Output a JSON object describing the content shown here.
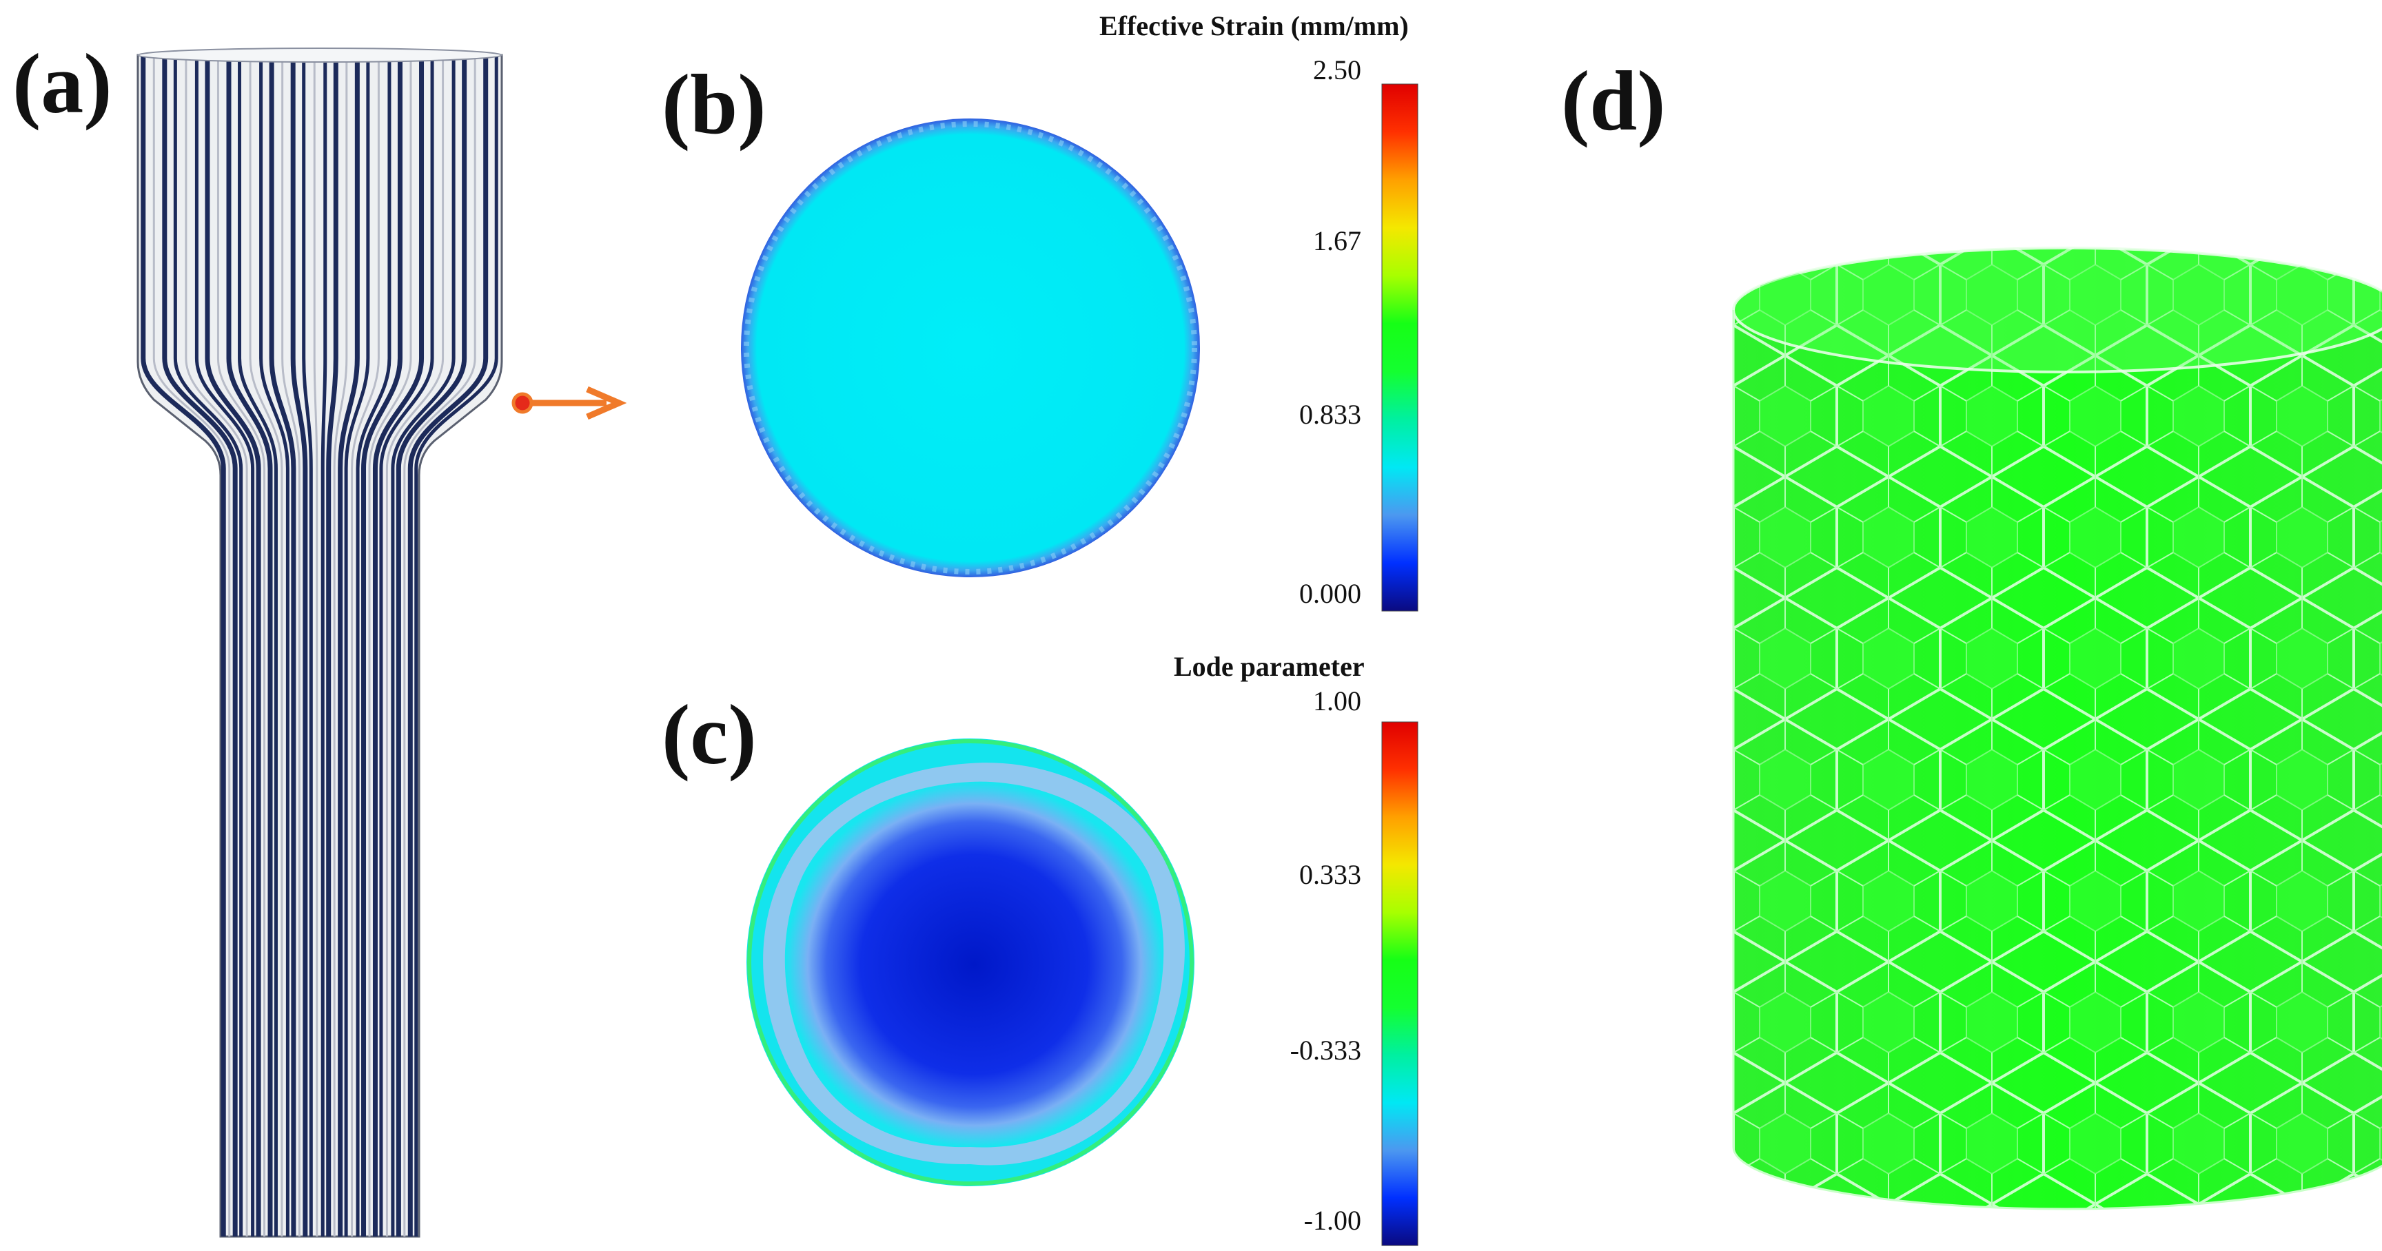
{
  "panels": {
    "a": {
      "label": "(a)"
    },
    "b": {
      "label": "(b)"
    },
    "c": {
      "label": "(c)"
    },
    "d": {
      "label": "(d)"
    }
  },
  "legend_strain": {
    "title": "Effective Strain (mm/mm)",
    "ticks": [
      "2.50",
      "1.67",
      "0.833",
      "0.000"
    ]
  },
  "legend_lode": {
    "title": "Lode parameter",
    "ticks": [
      "1.00",
      "0.333",
      "-0.333",
      "-1.00"
    ]
  },
  "colors": {
    "arrow": "#f07a2a",
    "marker": "#e52a1a",
    "cross_section_b": "#00e8f4",
    "cross_section_c_core": "#0018d8",
    "grain_fill": "#22ff22",
    "grain_edge": "#e8ffe8",
    "fiber_line": "#1c2a5a"
  },
  "colormap": [
    "#0a0a80",
    "#0030ff",
    "#4c98f0",
    "#00e8f4",
    "#00f0a0",
    "#14ff30",
    "#16ff16",
    "#a8ff00",
    "#f4e800",
    "#ffa000",
    "#ff3000",
    "#e00000"
  ]
}
